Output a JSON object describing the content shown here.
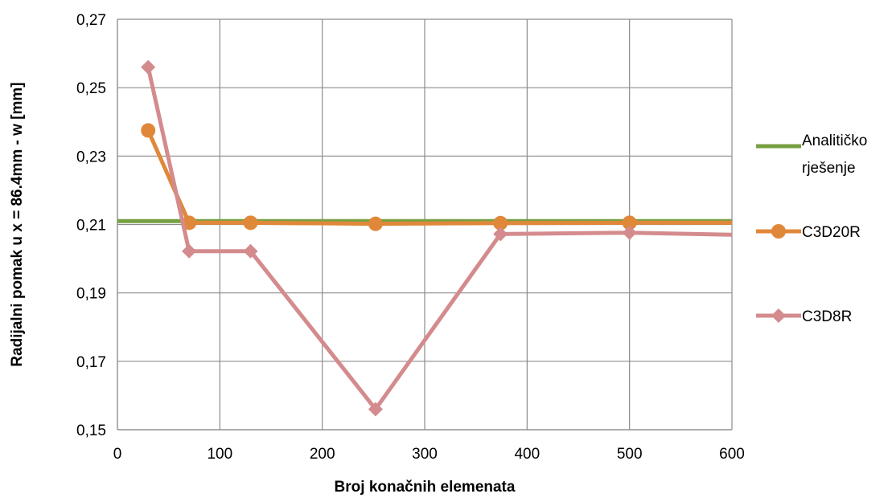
{
  "chart_data": {
    "type": "line",
    "title": "",
    "xlabel": "Broj konačnih elemenata",
    "ylabel": "Radijalni pomak u x = 86.4mm - w [mm]",
    "xlim": [
      0,
      600
    ],
    "ylim": [
      0.15,
      0.27
    ],
    "x_ticks": [
      0,
      100,
      200,
      300,
      400,
      500,
      600
    ],
    "y_ticks": [
      0.15,
      0.17,
      0.19,
      0.21,
      0.23,
      0.25,
      0.27
    ],
    "x_tick_labels": [
      "0",
      "100",
      "200",
      "300",
      "400",
      "500",
      "600"
    ],
    "y_tick_labels": [
      "0,15",
      "0,17",
      "0,19",
      "0,21",
      "0,23",
      "0,25",
      "0,27"
    ],
    "grid": true,
    "legend_position": "right",
    "series": [
      {
        "name": "Analitičko rješenje",
        "legend_lines": [
          "Analitičko",
          "rješenje"
        ],
        "color": "#77a043",
        "marker": "none",
        "x": [
          0,
          600
        ],
        "y": [
          0.211,
          0.211
        ]
      },
      {
        "name": "C3D20R",
        "legend_lines": [
          "C3D20R"
        ],
        "color": "#e0883a",
        "marker": "circle",
        "x": [
          30,
          70,
          130,
          252,
          374,
          500,
          600
        ],
        "y": [
          0.2375,
          0.2105,
          0.2105,
          0.2102,
          0.2104,
          0.2105,
          0.2105
        ],
        "marker_count": 6
      },
      {
        "name": "C3D8R",
        "legend_lines": [
          "C3D8R"
        ],
        "color": "#d48b8d",
        "marker": "diamond",
        "x": [
          30,
          70,
          130,
          252,
          374,
          500,
          600
        ],
        "y": [
          0.256,
          0.2022,
          0.2022,
          0.156,
          0.2072,
          0.2076,
          0.207
        ],
        "marker_count": 6
      }
    ]
  }
}
